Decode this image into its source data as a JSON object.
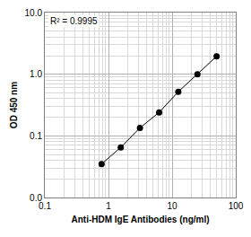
{
  "chart_data": {
    "type": "scatter",
    "x_label": "Anti-HDM IgE Antibodies (ng/ml)",
    "y_label": "OD 450 nm",
    "annotations": [
      "R² = 0.9995"
    ],
    "x": [
      0.78,
      1.56,
      3.125,
      6.25,
      12.5,
      25,
      50
    ],
    "values": [
      0.035,
      0.065,
      0.135,
      0.24,
      0.52,
      1.0,
      1.95
    ],
    "color": "#000000",
    "marker": "circle",
    "line_style": "solid",
    "log": true,
    "grid": true,
    "xlim": [
      0.1,
      100
    ],
    "xticks": [
      0.1,
      1,
      10,
      100
    ],
    "ylim": [
      0.01,
      10
    ],
    "yticks": [
      {
        "value": 0.01,
        "label": "0.0"
      },
      0.1,
      {
        "value": 1,
        "label": "1.0"
      },
      {
        "value": 10,
        "label": "10.0"
      }
    ]
  }
}
